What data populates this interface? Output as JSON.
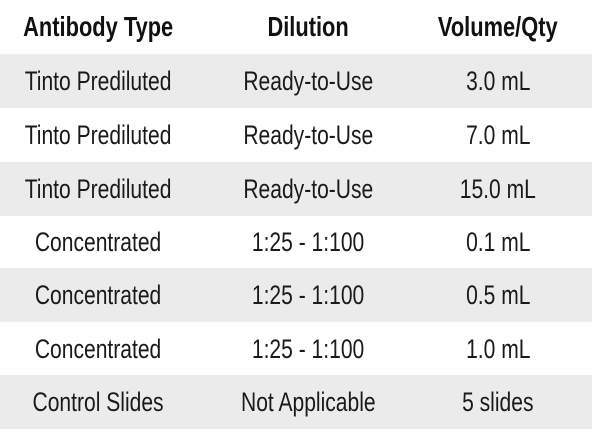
{
  "table": {
    "headers": [
      "Antibody Type",
      "Dilution",
      "Volume/Qty"
    ],
    "rows": [
      [
        "Tinto Prediluted",
        "Ready-to-Use",
        "3.0 mL"
      ],
      [
        "Tinto Prediluted",
        "Ready-to-Use",
        "7.0 mL"
      ],
      [
        "Tinto Prediluted",
        "Ready-to-Use",
        "15.0 mL"
      ],
      [
        "Concentrated",
        "1:25 - 1:100",
        "0.1 mL"
      ],
      [
        "Concentrated",
        "1:25 - 1:100",
        "0.5 mL"
      ],
      [
        "Concentrated",
        "1:25 - 1:100",
        "1.0 mL"
      ],
      [
        "Control Slides",
        "Not Applicable",
        "5 slides"
      ]
    ],
    "stripe_color": "#ebebeb"
  }
}
